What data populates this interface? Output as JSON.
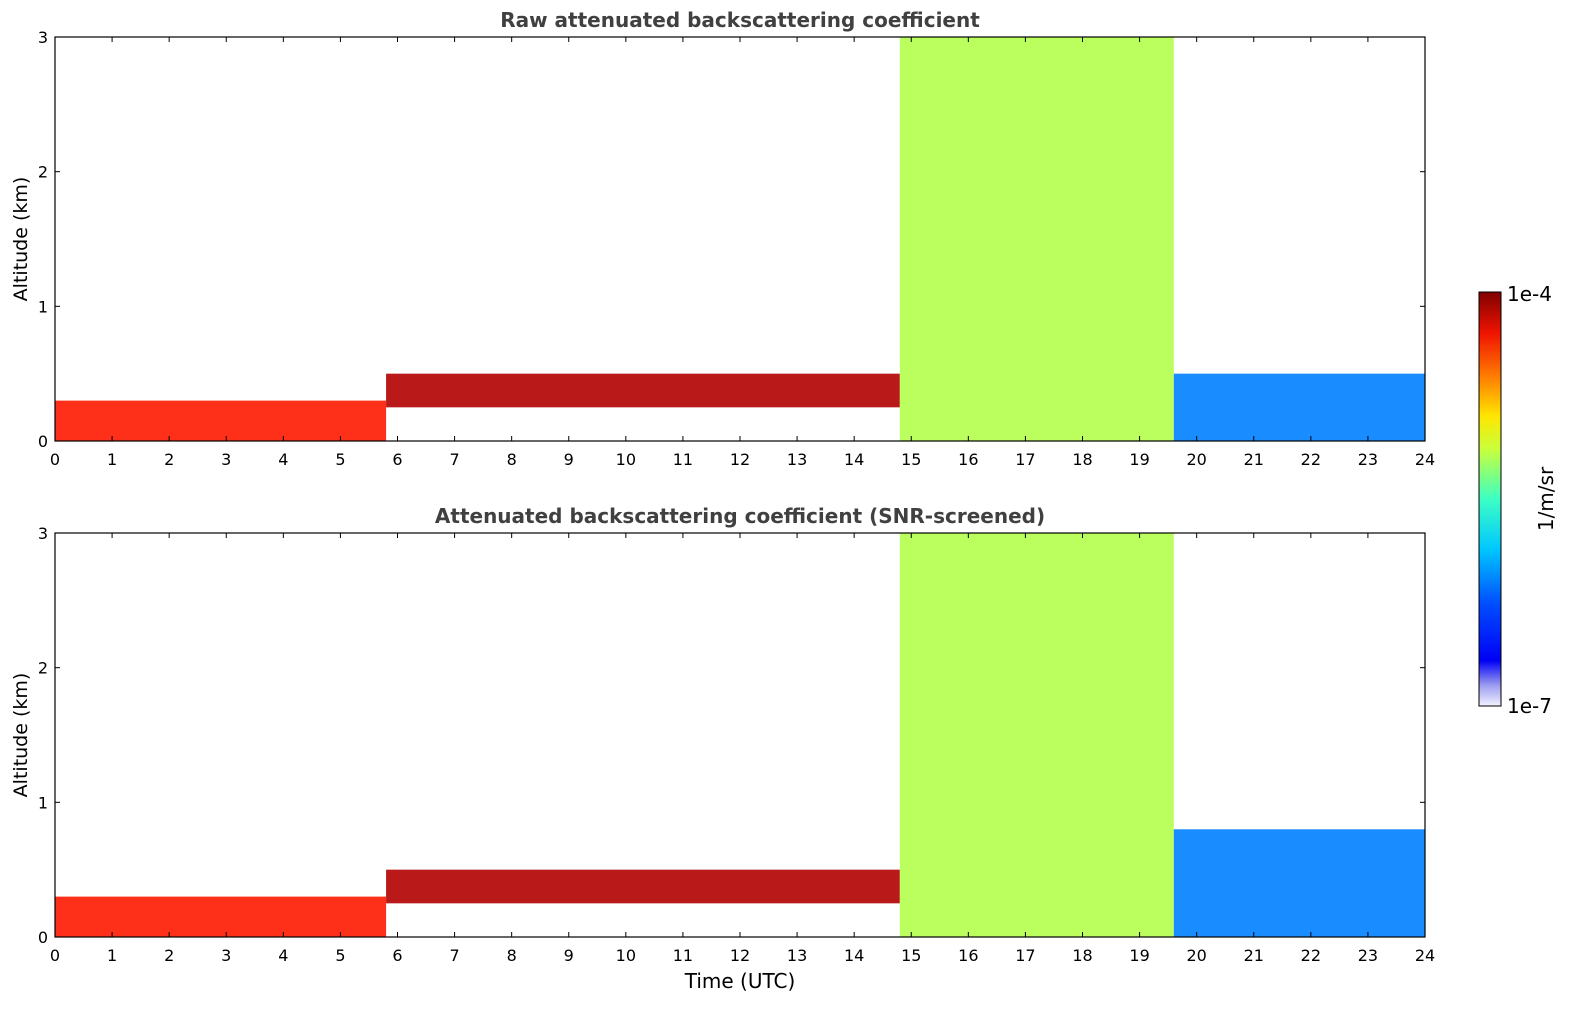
{
  "chart_data": [
    {
      "type": "heatmap",
      "title": "Raw attenuated backscattering coefficient",
      "xlabel": "",
      "ylabel": "Altitude (km)",
      "xlim": [
        0,
        24
      ],
      "ylim": [
        0,
        3
      ],
      "xticks": [
        "0",
        "1",
        "2",
        "3",
        "4",
        "5",
        "6",
        "7",
        "8",
        "9",
        "10",
        "11",
        "12",
        "13",
        "14",
        "15",
        "16",
        "17",
        "18",
        "19",
        "20",
        "21",
        "22",
        "23",
        "24"
      ],
      "yticks": [
        "0",
        "1",
        "2",
        "3"
      ],
      "features": [
        {
          "x0": 0,
          "x1": 5.8,
          "y0": 0,
          "y1": 0.3,
          "level": 0.85
        },
        {
          "x0": 5.8,
          "x1": 14.8,
          "y0": 0.25,
          "y1": 0.5,
          "level": 0.95
        },
        {
          "x0": 14.8,
          "x1": 19.6,
          "y0": 0,
          "y1": 3,
          "level": 0.55
        },
        {
          "x0": 19.6,
          "x1": 24,
          "y0": 0,
          "y1": 0.5,
          "level": 0.25
        }
      ]
    },
    {
      "type": "heatmap",
      "title": "Attenuated backscattering coefficient (SNR-screened)",
      "xlabel": "Time (UTC)",
      "ylabel": "Altitude (km)",
      "xlim": [
        0,
        24
      ],
      "ylim": [
        0,
        3
      ],
      "xticks": [
        "0",
        "1",
        "2",
        "3",
        "4",
        "5",
        "6",
        "7",
        "8",
        "9",
        "10",
        "11",
        "12",
        "13",
        "14",
        "15",
        "16",
        "17",
        "18",
        "19",
        "20",
        "21",
        "22",
        "23",
        "24"
      ],
      "yticks": [
        "0",
        "1",
        "2",
        "3"
      ],
      "features": [
        {
          "x0": 0,
          "x1": 5.8,
          "y0": 0,
          "y1": 0.3,
          "level": 0.85
        },
        {
          "x0": 5.8,
          "x1": 14.8,
          "y0": 0.25,
          "y1": 0.5,
          "level": 0.95
        },
        {
          "x0": 14.8,
          "x1": 19.6,
          "y0": 0,
          "y1": 3,
          "level": 0.55
        },
        {
          "x0": 19.6,
          "x1": 24,
          "y0": 0,
          "y1": 0.8,
          "level": 0.25
        }
      ]
    }
  ],
  "colorbar": {
    "max_label": "1e-4",
    "min_label": "1e-7",
    "unit_label": "1/m/sr",
    "colormap": "jet"
  }
}
